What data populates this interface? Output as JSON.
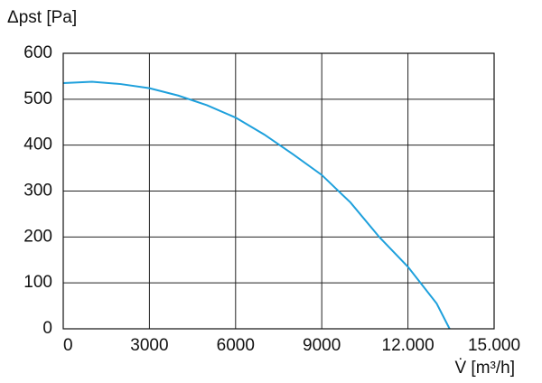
{
  "chart_data": {
    "type": "line",
    "ylabel": "Δpst [Pa]",
    "xlabel": "V̇ [m³/h]",
    "x": [
      0,
      1000,
      2000,
      3000,
      4000,
      5000,
      6000,
      7000,
      8000,
      9000,
      10000,
      11000,
      12000,
      13000,
      13450
    ],
    "series": [
      {
        "color": "#1ea0dc",
        "values": [
          535,
          538,
          533,
          524,
          508,
          487,
          460,
          423,
          380,
          335,
          275,
          200,
          135,
          55,
          0
        ]
      }
    ],
    "xlim": [
      0,
      15000
    ],
    "xticks": [
      0,
      3000,
      6000,
      9000,
      {
        "value": 12000,
        "label": "12.000"
      },
      {
        "value": 15000,
        "label": "15.000"
      }
    ],
    "ylim": [
      0,
      600
    ],
    "yticks": [
      0,
      100,
      200,
      300,
      400,
      500,
      600
    ],
    "grid": true
  }
}
